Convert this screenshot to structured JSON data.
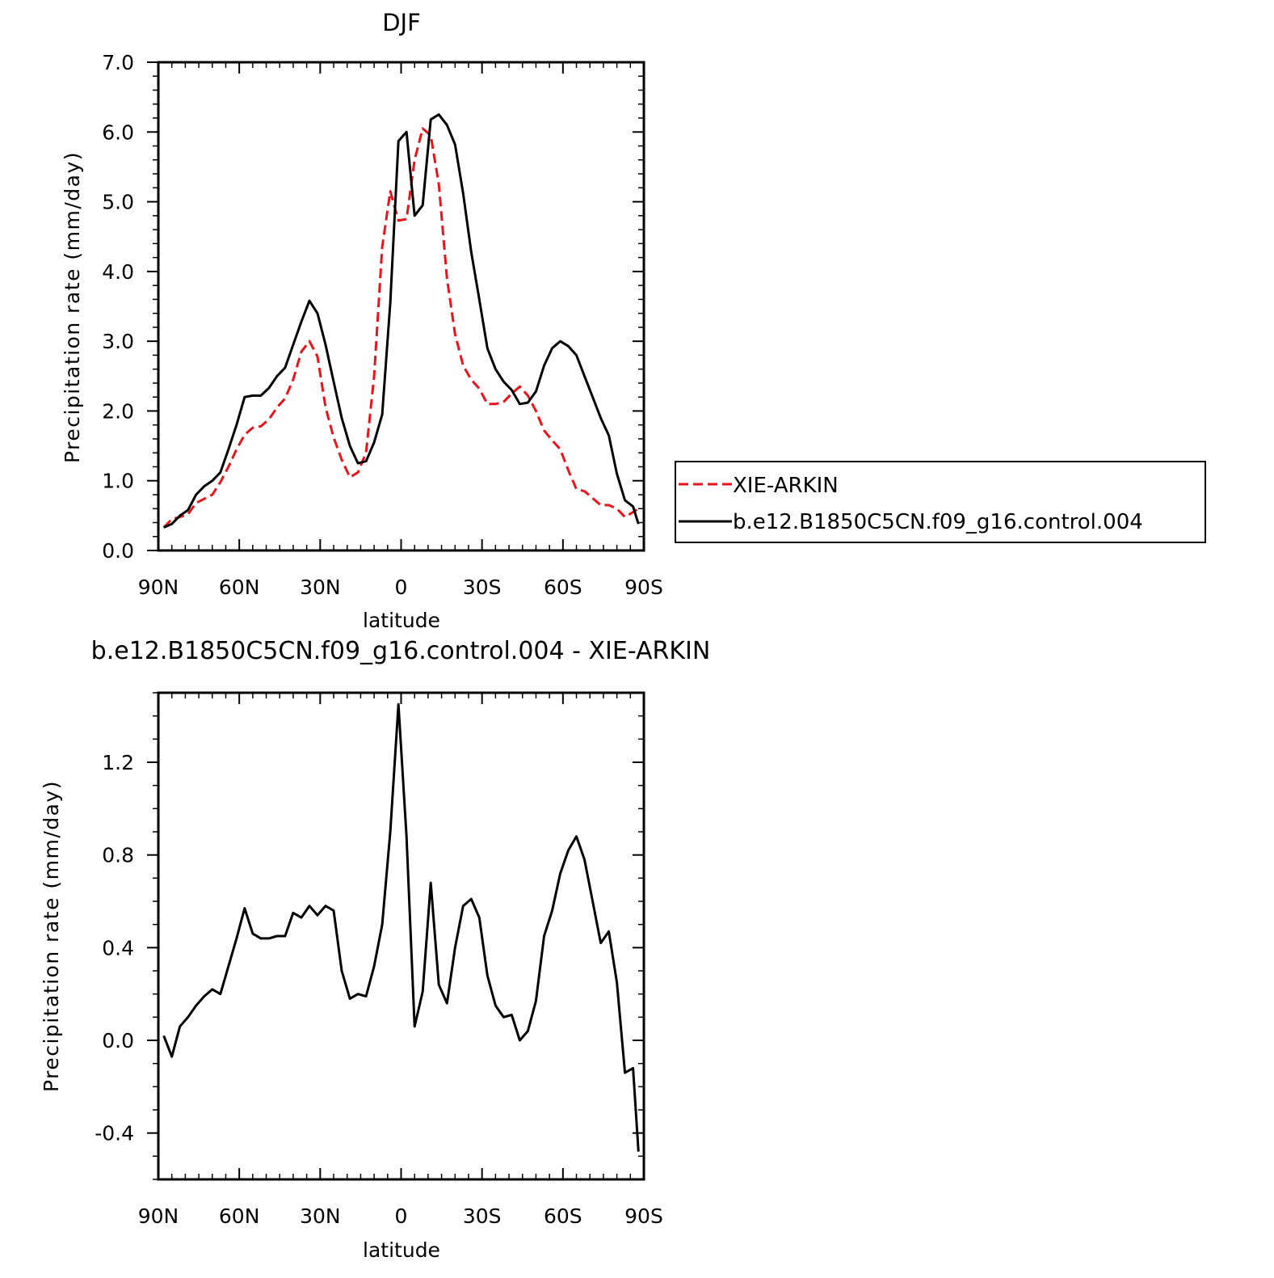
{
  "chart_data": [
    {
      "type": "line",
      "title": "DJF",
      "xlabel": "latitude",
      "ylabel": "Precipitation rate (mm/day)",
      "xlim": [
        90,
        -90
      ],
      "ylim": [
        0,
        7
      ],
      "xticks": [
        {
          "value": 90,
          "label": "90N"
        },
        {
          "value": 60,
          "label": "60N"
        },
        {
          "value": 30,
          "label": "30N"
        },
        {
          "value": 0,
          "label": "0"
        },
        {
          "value": -30,
          "label": "30S"
        },
        {
          "value": -60,
          "label": "60S"
        },
        {
          "value": -90,
          "label": "90S"
        }
      ],
      "yticks": [
        {
          "value": 0,
          "label": "0.0"
        },
        {
          "value": 1,
          "label": "1.0"
        },
        {
          "value": 2,
          "label": "2.0"
        },
        {
          "value": 3,
          "label": "3.0"
        },
        {
          "value": 4,
          "label": "4.0"
        },
        {
          "value": 5,
          "label": "5.0"
        },
        {
          "value": 6,
          "label": "6.0"
        },
        {
          "value": 7,
          "label": "7.0"
        }
      ],
      "legend": "right",
      "series": [
        {
          "name": "XIE-ARKIN",
          "color": "#e8141b",
          "dash": "dashed",
          "x": [
            88,
            85,
            82,
            79,
            76,
            73,
            70,
            67,
            64,
            61,
            58,
            55,
            52,
            49,
            46,
            43,
            40,
            37,
            34,
            31,
            28,
            25,
            22,
            19,
            16,
            13,
            10,
            7,
            4,
            1,
            -2,
            -5,
            -8,
            -11,
            -14,
            -17,
            -20,
            -23,
            -26,
            -29,
            -32,
            -35,
            -38,
            -41,
            -44,
            -47,
            -50,
            -53,
            -56,
            -59,
            -62,
            -65,
            -68,
            -71,
            -74,
            -77,
            -80,
            -83,
            -86,
            -88
          ],
          "values": [
            0.33,
            0.45,
            0.48,
            0.52,
            0.68,
            0.74,
            0.8,
            0.98,
            1.2,
            1.45,
            1.66,
            1.76,
            1.78,
            1.88,
            2.05,
            2.18,
            2.45,
            2.85,
            3.0,
            2.78,
            2.05,
            1.62,
            1.3,
            1.05,
            1.12,
            1.4,
            2.5,
            4.35,
            5.15,
            4.73,
            4.75,
            5.6,
            6.05,
            5.95,
            5.25,
            3.9,
            3.1,
            2.65,
            2.45,
            2.32,
            2.1,
            2.1,
            2.13,
            2.25,
            2.35,
            2.22,
            2.0,
            1.72,
            1.58,
            1.45,
            1.15,
            0.88,
            0.85,
            0.75,
            0.65,
            0.65,
            0.6,
            0.48,
            0.55,
            0.6
          ]
        },
        {
          "name": "b.e12.B1850C5CN.f09_g16.control.004",
          "color": "#000000",
          "dash": "solid",
          "x": [
            88,
            85,
            82,
            79,
            76,
            73,
            70,
            67,
            64,
            61,
            58,
            55,
            52,
            49,
            46,
            43,
            40,
            37,
            34,
            31,
            28,
            25,
            22,
            19,
            16,
            13,
            10,
            7,
            4,
            1,
            -2,
            -5,
            -8,
            -11,
            -14,
            -17,
            -20,
            -23,
            -26,
            -29,
            -32,
            -35,
            -38,
            -41,
            -44,
            -47,
            -50,
            -53,
            -56,
            -59,
            -62,
            -65,
            -68,
            -71,
            -74,
            -77,
            -80,
            -83,
            -86,
            -88
          ],
          "values": [
            0.33,
            0.38,
            0.5,
            0.58,
            0.8,
            0.92,
            1.0,
            1.12,
            1.45,
            1.8,
            2.2,
            2.22,
            2.22,
            2.33,
            2.5,
            2.62,
            2.95,
            3.28,
            3.58,
            3.4,
            2.95,
            2.42,
            1.9,
            1.5,
            1.25,
            1.28,
            1.55,
            1.95,
            3.55,
            5.87,
            6.0,
            4.8,
            4.95,
            6.18,
            6.25,
            6.1,
            5.82,
            5.12,
            4.28,
            3.6,
            2.9,
            2.6,
            2.42,
            2.3,
            2.1,
            2.12,
            2.28,
            2.65,
            2.9,
            3.0,
            2.93,
            2.8,
            2.5,
            2.2,
            1.9,
            1.65,
            1.1,
            0.72,
            0.63,
            0.38
          ]
        }
      ]
    },
    {
      "type": "line",
      "title": "b.e12.B1850C5CN.f09_g16.control.004 - XIE-ARKIN",
      "xlabel": "latitude",
      "ylabel": "Precipitation rate (mm/day)",
      "xlim": [
        90,
        -90
      ],
      "ylim": [
        -0.6,
        1.5
      ],
      "xticks": [
        {
          "value": 90,
          "label": "90N"
        },
        {
          "value": 60,
          "label": "60N"
        },
        {
          "value": 30,
          "label": "30N"
        },
        {
          "value": 0,
          "label": "0"
        },
        {
          "value": -30,
          "label": "30S"
        },
        {
          "value": -60,
          "label": "60S"
        },
        {
          "value": -90,
          "label": "90S"
        }
      ],
      "yticks": [
        {
          "value": -0.4,
          "label": "-0.4"
        },
        {
          "value": 0.0,
          "label": "0.0"
        },
        {
          "value": 0.4,
          "label": "0.4"
        },
        {
          "value": 0.8,
          "label": "0.8"
        },
        {
          "value": 1.2,
          "label": "1.2"
        }
      ],
      "series": [
        {
          "color": "#000000",
          "dash": "solid",
          "x": [
            88,
            85,
            82,
            79,
            76,
            73,
            70,
            67,
            64,
            61,
            58,
            55,
            52,
            49,
            46,
            43,
            40,
            37,
            34,
            31,
            28,
            25,
            22,
            19,
            16,
            13,
            10,
            7,
            4,
            1,
            -2,
            -5,
            -8,
            -11,
            -14,
            -17,
            -20,
            -23,
            -26,
            -29,
            -32,
            -35,
            -38,
            -41,
            -44,
            -47,
            -50,
            -53,
            -56,
            -59,
            -62,
            -65,
            -68,
            -71,
            -74,
            -77,
            -80,
            -83,
            -86,
            -88
          ],
          "values": [
            0.02,
            -0.07,
            0.06,
            0.1,
            0.15,
            0.19,
            0.22,
            0.2,
            0.32,
            0.44,
            0.57,
            0.46,
            0.44,
            0.44,
            0.45,
            0.45,
            0.55,
            0.53,
            0.58,
            0.54,
            0.58,
            0.56,
            0.3,
            0.18,
            0.2,
            0.19,
            0.32,
            0.5,
            0.9,
            1.45,
            0.88,
            0.06,
            0.21,
            0.68,
            0.24,
            0.16,
            0.4,
            0.58,
            0.61,
            0.53,
            0.28,
            0.15,
            0.1,
            0.11,
            0.0,
            0.04,
            0.17,
            0.45,
            0.56,
            0.72,
            0.82,
            0.88,
            0.78,
            0.6,
            0.42,
            0.47,
            0.25,
            -0.14,
            -0.12,
            -0.48
          ]
        }
      ]
    }
  ]
}
